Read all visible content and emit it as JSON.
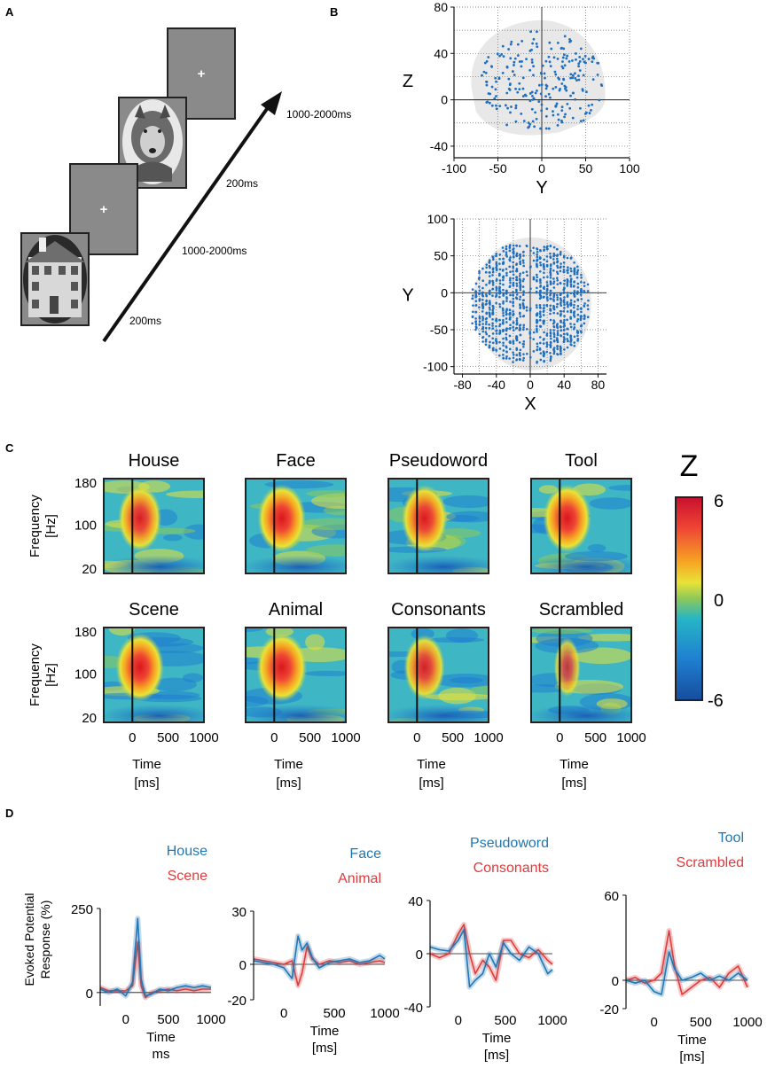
{
  "panel_labels": {
    "a": "A",
    "b": "B",
    "c": "C",
    "d": "D"
  },
  "paradigm": {
    "durations": [
      "200ms",
      "1000-2000ms",
      "200ms",
      "1000-2000ms"
    ],
    "fixation": "+",
    "stimuli": [
      "house photo",
      "fixation screen",
      "wolf photo",
      "fixation screen"
    ]
  },
  "colors": {
    "blue": "#1f77b4",
    "red": "#e03b3b",
    "scatter": "#1f6fc0",
    "brain": "#e8e8e8"
  },
  "chart_data": [
    {
      "id": "electrodes-yz",
      "type": "scatter",
      "xlabel": "Y",
      "ylabel": "Z",
      "xticks": [
        -100,
        -50,
        0,
        50,
        100
      ],
      "yticks": [
        -40,
        0,
        40,
        80
      ],
      "xlim": [
        -100,
        100
      ],
      "ylim": [
        -50,
        80
      ],
      "points_description": "electrode locations, ~400 points"
    },
    {
      "id": "electrodes-xy",
      "type": "scatter",
      "xlabel": "X",
      "ylabel": "Y",
      "xticks": [
        -80,
        -40,
        0,
        40,
        80
      ],
      "yticks": [
        -100,
        -50,
        0,
        50,
        100
      ],
      "xlim": [
        -90,
        90
      ],
      "ylim": [
        -110,
        100
      ],
      "points_description": "electrode locations, ~900 points"
    },
    {
      "id": "spectrograms",
      "type": "heatmap",
      "ylabel": "Frequency [Hz]",
      "yticks": [
        180,
        100,
        20
      ],
      "xticks": [
        0,
        500,
        1000
      ],
      "xlabel_line1": "Time",
      "xlabel_line2": "[ms]",
      "colorbar": {
        "title": "Z",
        "max": 6,
        "mid": 0,
        "min": -6
      },
      "conditions": [
        {
          "name": "House",
          "peak": 0.9
        },
        {
          "name": "Face",
          "peak": 1.0
        },
        {
          "name": "Pseudoword",
          "peak": 0.95
        },
        {
          "name": "Tool",
          "peak": 1.0
        },
        {
          "name": "Scene",
          "peak": 1.0
        },
        {
          "name": "Animal",
          "peak": 1.05
        },
        {
          "name": "Consonants",
          "peak": 0.85
        },
        {
          "name": "Scrambled",
          "peak": 0.55
        }
      ]
    },
    {
      "id": "evoked-potentials",
      "type": "line",
      "ylabel_line1": "Evoked Potential",
      "ylabel_line2": "Response (%)",
      "xticks": [
        0,
        500,
        1000
      ],
      "xlim": [
        -300,
        1000
      ],
      "subplots": [
        {
          "series": [
            "House",
            "Scene"
          ],
          "yticks": [
            250,
            0
          ],
          "ylim": [
            -40,
            250
          ],
          "xlabel_line1": "Time",
          "xlabel_line2": "ms",
          "blue": [
            [
              -300,
              10
            ],
            [
              -200,
              0
            ],
            [
              -100,
              10
            ],
            [
              0,
              -10
            ],
            [
              80,
              30
            ],
            [
              140,
              220
            ],
            [
              180,
              40
            ],
            [
              230,
              -10
            ],
            [
              300,
              -5
            ],
            [
              400,
              10
            ],
            [
              500,
              5
            ],
            [
              600,
              15
            ],
            [
              700,
              20
            ],
            [
              800,
              15
            ],
            [
              900,
              20
            ],
            [
              1000,
              15
            ]
          ],
          "red": [
            [
              -300,
              15
            ],
            [
              -200,
              5
            ],
            [
              -100,
              5
            ],
            [
              0,
              5
            ],
            [
              80,
              20
            ],
            [
              140,
              150
            ],
            [
              180,
              20
            ],
            [
              230,
              -15
            ],
            [
              300,
              0
            ],
            [
              400,
              5
            ],
            [
              500,
              10
            ],
            [
              600,
              5
            ],
            [
              700,
              10
            ],
            [
              800,
              5
            ],
            [
              900,
              10
            ],
            [
              1000,
              10
            ]
          ]
        },
        {
          "series": [
            "Face",
            "Animal"
          ],
          "yticks": [
            30,
            0,
            -20
          ],
          "ylim": [
            -20,
            30
          ],
          "xlabel_line1": "Time",
          "xlabel_line2": "[ms]",
          "blue": [
            [
              -300,
              2
            ],
            [
              -200,
              1
            ],
            [
              -100,
              0
            ],
            [
              0,
              -2
            ],
            [
              80,
              -8
            ],
            [
              140,
              16
            ],
            [
              180,
              8
            ],
            [
              230,
              12
            ],
            [
              280,
              4
            ],
            [
              350,
              -2
            ],
            [
              450,
              1
            ],
            [
              550,
              2
            ],
            [
              650,
              3
            ],
            [
              750,
              1
            ],
            [
              850,
              2
            ],
            [
              950,
              5
            ],
            [
              1000,
              3
            ]
          ],
          "red": [
            [
              -300,
              3
            ],
            [
              -200,
              2
            ],
            [
              -100,
              1
            ],
            [
              0,
              0
            ],
            [
              80,
              2
            ],
            [
              140,
              -12
            ],
            [
              180,
              -5
            ],
            [
              230,
              10
            ],
            [
              280,
              3
            ],
            [
              350,
              0
            ],
            [
              450,
              2
            ],
            [
              550,
              1
            ],
            [
              650,
              2
            ],
            [
              750,
              0
            ],
            [
              850,
              1
            ],
            [
              950,
              2
            ],
            [
              1000,
              1
            ]
          ]
        },
        {
          "series": [
            "Pseudoword",
            "Consonants"
          ],
          "yticks": [
            40,
            0,
            -40
          ],
          "ylim": [
            -40,
            40
          ],
          "xlabel_line1": "Time",
          "xlabel_line2": "[ms]",
          "blue": [
            [
              -300,
              5
            ],
            [
              -200,
              3
            ],
            [
              -100,
              2
            ],
            [
              0,
              10
            ],
            [
              60,
              18
            ],
            [
              120,
              -25
            ],
            [
              180,
              -20
            ],
            [
              260,
              -15
            ],
            [
              330,
              0
            ],
            [
              400,
              -10
            ],
            [
              480,
              8
            ],
            [
              560,
              0
            ],
            [
              650,
              -5
            ],
            [
              750,
              5
            ],
            [
              850,
              0
            ],
            [
              950,
              -15
            ],
            [
              1000,
              -12
            ]
          ],
          "red": [
            [
              -300,
              0
            ],
            [
              -200,
              -3
            ],
            [
              -100,
              0
            ],
            [
              0,
              15
            ],
            [
              60,
              22
            ],
            [
              120,
              0
            ],
            [
              180,
              -15
            ],
            [
              260,
              -5
            ],
            [
              330,
              -10
            ],
            [
              400,
              -20
            ],
            [
              480,
              10
            ],
            [
              560,
              10
            ],
            [
              650,
              0
            ],
            [
              750,
              -3
            ],
            [
              850,
              3
            ],
            [
              950,
              -5
            ],
            [
              1000,
              -8
            ]
          ]
        },
        {
          "series": [
            "Tool",
            "Scrambled"
          ],
          "yticks": [
            60,
            0,
            -20
          ],
          "ylim": [
            -20,
            60
          ],
          "xlabel_line1": "Time",
          "xlabel_line2": "[ms]",
          "blue": [
            [
              -300,
              0
            ],
            [
              -200,
              -2
            ],
            [
              -100,
              0
            ],
            [
              0,
              -8
            ],
            [
              80,
              -10
            ],
            [
              160,
              20
            ],
            [
              220,
              8
            ],
            [
              300,
              0
            ],
            [
              400,
              2
            ],
            [
              500,
              5
            ],
            [
              600,
              0
            ],
            [
              700,
              3
            ],
            [
              800,
              0
            ],
            [
              900,
              5
            ],
            [
              1000,
              0
            ]
          ],
          "red": [
            [
              -300,
              0
            ],
            [
              -200,
              2
            ],
            [
              -100,
              -2
            ],
            [
              0,
              0
            ],
            [
              80,
              5
            ],
            [
              160,
              35
            ],
            [
              220,
              10
            ],
            [
              300,
              -10
            ],
            [
              400,
              -5
            ],
            [
              500,
              0
            ],
            [
              600,
              2
            ],
            [
              700,
              -5
            ],
            [
              800,
              5
            ],
            [
              900,
              10
            ],
            [
              1000,
              -5
            ]
          ]
        }
      ]
    }
  ]
}
